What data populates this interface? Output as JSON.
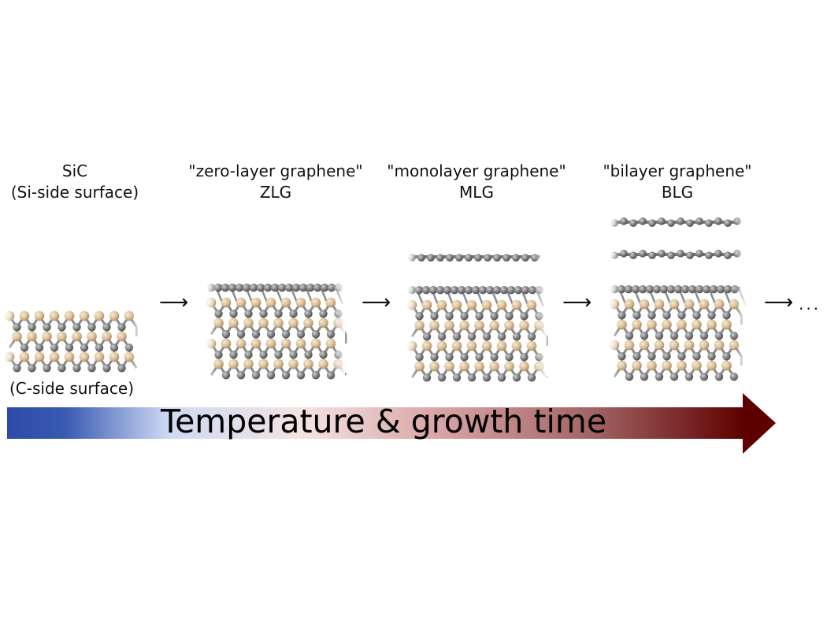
{
  "stages": [
    {
      "title": "SiC",
      "subtitle": "(Si-side surface)"
    },
    {
      "title": "\"zero-layer graphene\"",
      "subtitle": "ZLG"
    },
    {
      "title": "\"monolayer graphene\"",
      "subtitle": "MLG"
    },
    {
      "title": "\"bilayer graphene\"",
      "subtitle": "BLG"
    }
  ],
  "bottom_caption": "(C-side surface)",
  "step_arrow_glyph": "⟶",
  "continuation": "...",
  "banner": {
    "label": "Temperature & growth time",
    "colors": {
      "cold": "#2d4ea8",
      "mid": "#f5e4e4",
      "hot": "#5e0000"
    }
  },
  "atom_colors": {
    "silicon": "#d9c19c",
    "carbon": "#777777"
  }
}
